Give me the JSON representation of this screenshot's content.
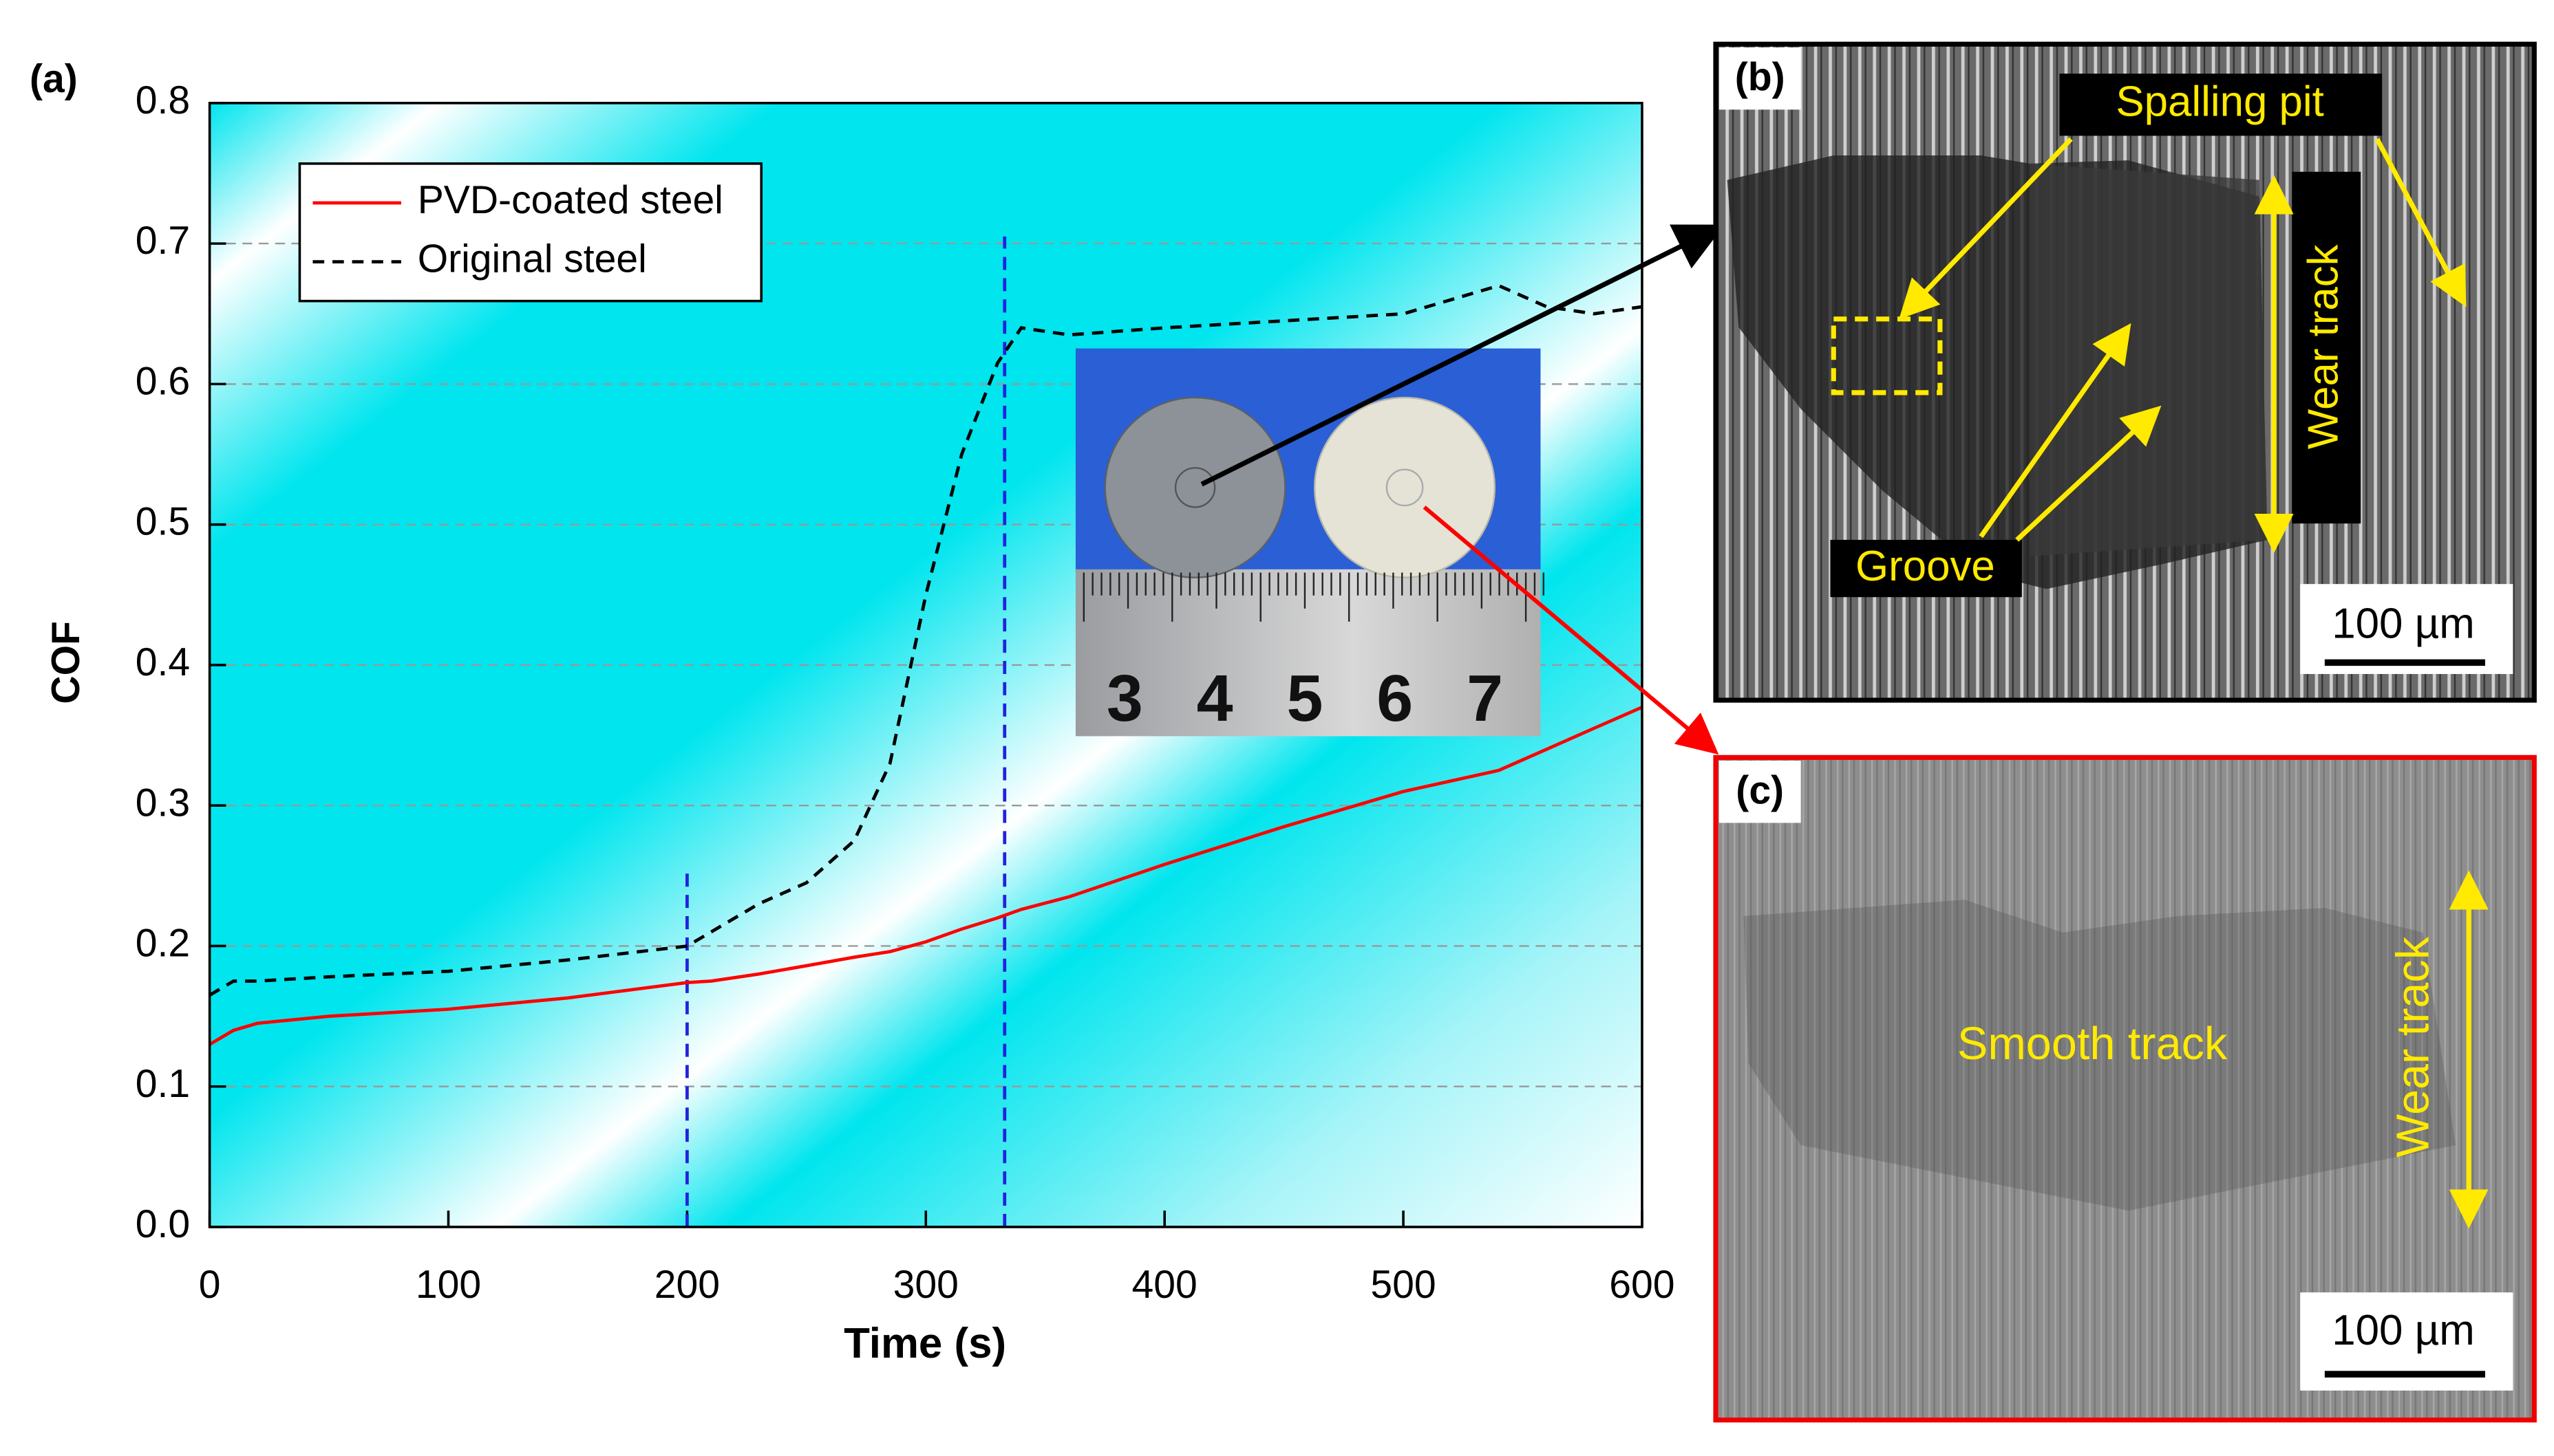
{
  "chart_data": {
    "type": "line",
    "panel_label": "(a)",
    "xlabel": "Time (s)",
    "ylabel": "COF",
    "x": [
      0,
      10,
      20,
      50,
      100,
      150,
      200,
      210,
      230,
      250,
      270,
      285,
      300,
      315,
      330,
      340,
      360,
      400,
      450,
      500,
      540,
      560,
      580,
      600
    ],
    "series": [
      {
        "name": "PVD-coated steel",
        "color": "#ff0000",
        "dash": "solid",
        "values": [
          0.13,
          0.14,
          0.145,
          0.15,
          0.155,
          0.163,
          0.174,
          0.175,
          0.18,
          0.186,
          0.192,
          0.196,
          0.203,
          0.212,
          0.22,
          0.226,
          0.235,
          0.258,
          0.285,
          0.31,
          0.325,
          0.34,
          0.355,
          0.37
        ]
      },
      {
        "name": "Original steel",
        "color": "#000000",
        "dash": "dashed",
        "values": [
          0.165,
          0.175,
          0.175,
          0.178,
          0.182,
          0.19,
          0.2,
          0.21,
          0.23,
          0.245,
          0.275,
          0.33,
          0.45,
          0.55,
          0.615,
          0.64,
          0.635,
          0.64,
          0.645,
          0.65,
          0.67,
          0.655,
          0.65,
          0.655
        ]
      }
    ],
    "vlines": [
      {
        "x": 200,
        "ymax": 0.255,
        "color": "#2222dd"
      },
      {
        "x": 333,
        "ymax": 0.705,
        "color": "#2222dd"
      }
    ],
    "xlim": [
      0,
      600
    ],
    "xticks": [
      0,
      100,
      200,
      300,
      400,
      500,
      600
    ],
    "ylim": [
      0,
      0.8
    ],
    "yticks": [
      {
        "value": 0,
        "label": "0.0"
      },
      0.1,
      0.2,
      0.3,
      0.4,
      0.5,
      0.6,
      0.7,
      0.8
    ],
    "grid": true,
    "legend": "upper left"
  },
  "inset": {
    "ruler_numbers": [
      "3",
      "4",
      "5",
      "6",
      "7"
    ]
  },
  "panel_b": {
    "label": "(b)",
    "spalling": "Spalling pit",
    "groove": "Groove",
    "wear_track": "Wear track",
    "scale": "100 µm"
  },
  "panel_c": {
    "label": "(c)",
    "smooth": "Smooth track",
    "wear_track": "Wear track",
    "scale": "100 µm"
  }
}
